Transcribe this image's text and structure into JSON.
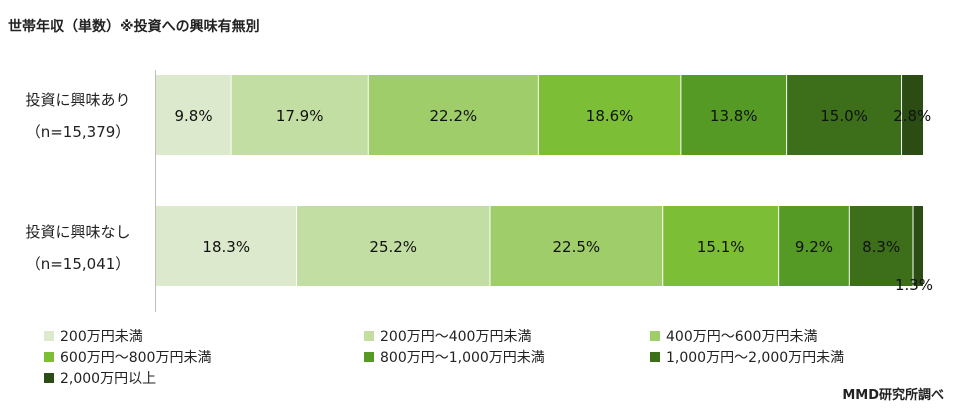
{
  "chart_data": {
    "type": "bar",
    "orientation": "horizontal-stacked-100",
    "title": "世帯年収（単数）※投資への興味有無別",
    "categories": [
      {
        "label": "投資に興味あり",
        "n": "（n=15,379）"
      },
      {
        "label": "投資に興味なし",
        "n": "（n=15,041）"
      }
    ],
    "series": [
      {
        "name": "200万円未満",
        "color": "#dde9cc",
        "values": [
          9.8,
          18.3
        ]
      },
      {
        "name": "200万円～400万円未満",
        "color": "#c3dea2",
        "values": [
          17.9,
          25.2
        ]
      },
      {
        "name": "400万円～600万円未満",
        "color": "#9fcd6a",
        "values": [
          22.2,
          22.5
        ]
      },
      {
        "name": "600万円～800万円未満",
        "color": "#7cbf37",
        "values": [
          18.6,
          15.1
        ]
      },
      {
        "name": "800万円～1,000万円未満",
        "color": "#559a24",
        "values": [
          13.8,
          9.2
        ]
      },
      {
        "name": "1,000万円～2,000万円未満",
        "color": "#3d6f1a",
        "values": [
          15.0,
          8.3
        ]
      },
      {
        "name": "2,000万円以上",
        "color": "#2b4d14",
        "values": [
          2.8,
          1.3
        ]
      }
    ],
    "value_suffix": "%",
    "xlim": [
      0,
      100
    ],
    "legend_position": "bottom"
  },
  "source": "MMD研究所調べ"
}
